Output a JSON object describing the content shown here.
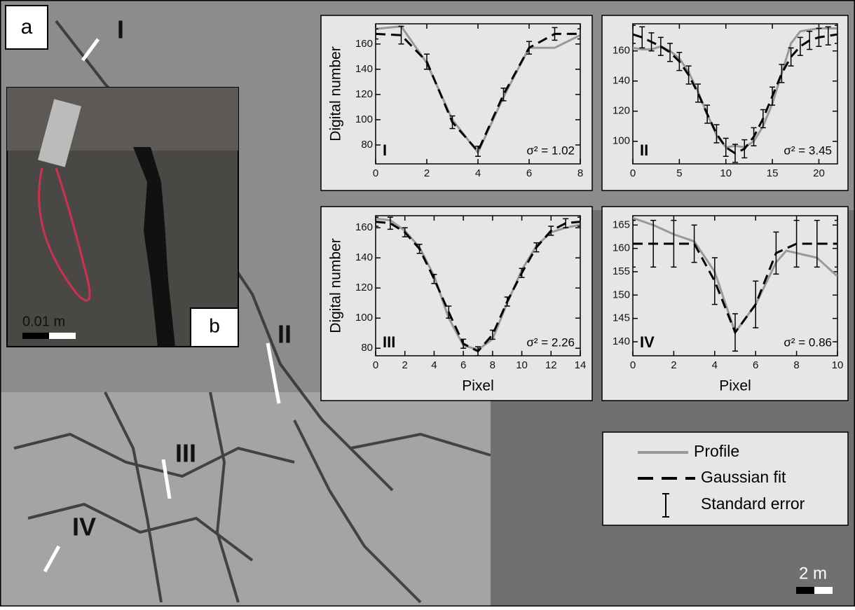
{
  "labels": {
    "panel_a": "a",
    "panel_b": "b",
    "site_1": "I",
    "site_2": "II",
    "site_3": "III",
    "site_4": "IV",
    "scale_inset": "0.01 m",
    "scale_main": "2 m"
  },
  "legend": {
    "error_label": "Standard error"
  },
  "chart_data": [
    {
      "type": "line",
      "panel_label": "I",
      "note": "σ² = 1.02",
      "ylabel": "Digital number",
      "xlim": [
        0,
        8
      ],
      "xticks": [
        0,
        2,
        4,
        6,
        8
      ],
      "ylim": [
        65,
        176
      ],
      "yticks": [
        80,
        100,
        120,
        140,
        160
      ],
      "series": [
        {
          "name": "Profile",
          "color": "#999999",
          "x": [
            0,
            1,
            2,
            3,
            4,
            5,
            6,
            7,
            8
          ],
          "values": [
            172,
            174,
            145,
            100,
            74,
            118,
            157,
            157,
            167
          ]
        },
        {
          "name": "Gaussian fit",
          "color": "#000000",
          "dashed": true,
          "x": [
            0,
            1,
            2,
            3,
            4,
            5,
            6,
            7,
            8
          ],
          "values": [
            168,
            167,
            146,
            98,
            75,
            120,
            157,
            168,
            168
          ],
          "errors": [
            4,
            7,
            6,
            5,
            4,
            5,
            5,
            5,
            4
          ]
        }
      ]
    },
    {
      "type": "line",
      "panel_label": "II",
      "note": "σ² = 3.45",
      "xlim": [
        0,
        22
      ],
      "xticks": [
        0,
        5,
        10,
        15,
        20
      ],
      "ylim": [
        85,
        178
      ],
      "yticks": [
        100,
        120,
        140,
        160
      ],
      "series": [
        {
          "name": "Profile",
          "color": "#999999",
          "x": [
            0,
            1,
            2,
            3,
            4,
            5,
            6,
            7,
            8,
            9,
            10,
            11,
            12,
            13,
            14,
            15,
            16,
            17,
            18,
            19,
            20,
            21,
            22
          ],
          "values": [
            162,
            161,
            161,
            163,
            160,
            155,
            146,
            133,
            118,
            104,
            96,
            97,
            96,
            100,
            110,
            125,
            145,
            165,
            173,
            174,
            175,
            175,
            175
          ]
        },
        {
          "name": "Gaussian fit",
          "color": "#000000",
          "dashed": true,
          "x": [
            0,
            1,
            2,
            3,
            4,
            5,
            6,
            7,
            8,
            9,
            10,
            11,
            12,
            13,
            14,
            15,
            16,
            17,
            18,
            19,
            20,
            21,
            22
          ],
          "values": [
            171,
            169,
            166,
            163,
            159,
            153,
            144,
            132,
            118,
            105,
            96,
            92,
            95,
            103,
            115,
            130,
            145,
            156,
            163,
            167,
            169,
            170,
            171
          ],
          "errors": [
            6,
            7,
            6,
            6,
            6,
            6,
            6,
            6,
            6,
            6,
            6,
            6,
            6,
            6,
            6,
            6,
            6,
            6,
            6,
            6,
            6,
            6,
            6
          ]
        }
      ]
    },
    {
      "type": "line",
      "panel_label": "III",
      "note": "σ² = 2.26",
      "ylabel": "Digital number",
      "xlabel": "Pixel",
      "xlim": [
        0,
        14
      ],
      "xticks": [
        0,
        2,
        4,
        6,
        8,
        10,
        12,
        14
      ],
      "ylim": [
        75,
        168
      ],
      "yticks": [
        80,
        100,
        120,
        140,
        160
      ],
      "series": [
        {
          "name": "Profile",
          "color": "#999999",
          "x": [
            0,
            1,
            2,
            3,
            4,
            5,
            6,
            7,
            8,
            9,
            10,
            11,
            12,
            13,
            14
          ],
          "values": [
            166,
            165,
            158,
            147,
            128,
            100,
            82,
            79,
            86,
            110,
            132,
            148,
            157,
            160,
            162
          ]
        },
        {
          "name": "Gaussian fit",
          "color": "#000000",
          "dashed": true,
          "x": [
            0,
            1,
            2,
            3,
            4,
            5,
            6,
            7,
            8,
            9,
            10,
            11,
            12,
            13,
            14
          ],
          "values": [
            164,
            163,
            157,
            146,
            126,
            104,
            83,
            78,
            89,
            111,
            130,
            147,
            158,
            163,
            164
          ],
          "errors": [
            3,
            4,
            3,
            3,
            3,
            4,
            3,
            3,
            3,
            3,
            3,
            3,
            3,
            3,
            3
          ]
        }
      ]
    },
    {
      "type": "line",
      "panel_label": "IV",
      "note": "σ² =  0.86",
      "xlabel": "Pixel",
      "xlim": [
        0,
        10
      ],
      "xticks": [
        0,
        2,
        4,
        6,
        8,
        10
      ],
      "ylim": [
        137,
        167
      ],
      "yticks": [
        140,
        145,
        150,
        155,
        160,
        165
      ],
      "series": [
        {
          "name": "Profile",
          "color": "#999999",
          "x": [
            0,
            1,
            2,
            3,
            4,
            5,
            6,
            7,
            7.5,
            8,
            9,
            10
          ],
          "values": [
            166.5,
            165,
            163,
            161.5,
            155,
            142,
            148,
            157,
            159.5,
            159,
            158,
            154
          ]
        },
        {
          "name": "Gaussian fit",
          "color": "#000000",
          "dashed": true,
          "x": [
            0,
            1,
            2,
            3,
            4,
            5,
            6,
            7,
            8,
            9,
            10
          ],
          "values": [
            161,
            161,
            161,
            161,
            153,
            142,
            148,
            159,
            161,
            161,
            161
          ],
          "errors": [
            5,
            5,
            5,
            4,
            5,
            4,
            5,
            4.5,
            5,
            5,
            5
          ]
        }
      ]
    }
  ]
}
